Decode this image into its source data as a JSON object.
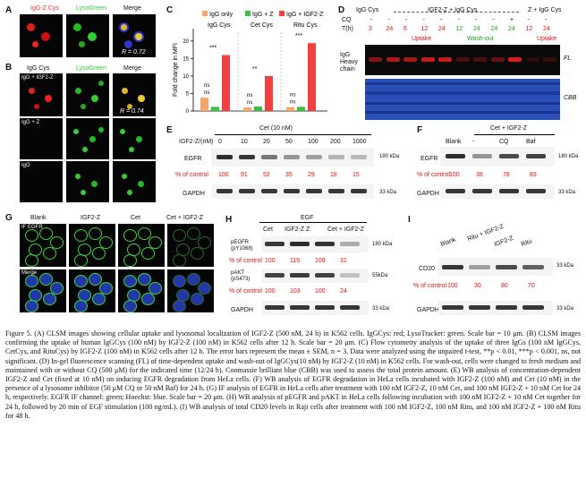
{
  "panel_letters": [
    "A",
    "B",
    "C",
    "D",
    "E",
    "F",
    "G",
    "H",
    "I"
  ],
  "panelA": {
    "labels": [
      "IgG-Z Cys",
      "LysoGreen",
      "Merge"
    ],
    "r_value": "R = 0.72"
  },
  "panelB": {
    "header": [
      "IgG Cys",
      "LysoGreen",
      "Merge"
    ],
    "rows": [
      "IgG + IGF2-Z",
      "IgG + Z",
      "IgG"
    ],
    "r_value": "R = 0.74"
  },
  "panelC": {
    "legend": [
      "IgG only",
      "IgG + Z",
      "IgG + IGF2-Z"
    ],
    "groups": [
      "IgG Cys",
      "Cet Cys",
      "Ritu Cys"
    ],
    "ylabel": "Fold change in MFI",
    "yticks": [
      "0",
      "5",
      "10",
      "15",
      "20"
    ],
    "significance": [
      "ns",
      "ns",
      "***",
      "ns",
      "ns",
      "**",
      "ns",
      "ns",
      "***"
    ],
    "colors": {
      "igg_only": "#f5a66a",
      "igg_z": "#3fbf3f",
      "igg_igf2z": "#f04040"
    }
  },
  "panelD": {
    "groups": [
      "IgG Cys",
      "IGF2-Z + IgG Cys",
      "Z + IgG Cys"
    ],
    "cq_row": [
      "-",
      "-",
      "-",
      "-",
      "-",
      "-",
      "-",
      "-",
      "+",
      "-",
      "-"
    ],
    "t_row": [
      "3",
      "24",
      "6",
      "12",
      "24",
      "12",
      "24",
      "24",
      "24",
      "12",
      "24"
    ],
    "sub_labels": [
      "Uptake",
      "Wash-out",
      "Uptake"
    ],
    "side_labels": [
      "IgG Heavy chain"
    ],
    "right_labels": [
      "FL",
      "CBB"
    ],
    "row_labels": [
      "CQ",
      "T(h)"
    ]
  },
  "panelE": {
    "title": "Cet (10 nM)",
    "conc_label": "IGF2-Z/(nM)",
    "concs": [
      "0",
      "10",
      "20",
      "50",
      "100",
      "200",
      "1000"
    ],
    "rows": [
      "EGFR",
      "GAPDH"
    ],
    "control_label": "% of control",
    "values": [
      "100",
      "91",
      "52",
      "35",
      "29",
      "18",
      "15"
    ],
    "kda": [
      "180 kDa",
      "33 kDa"
    ]
  },
  "panelF": {
    "title": "Cet + IGF2-Z",
    "lanes": [
      "Blank",
      "-",
      "CQ",
      "Baf"
    ],
    "rows": [
      "EGFR",
      "GAPDH"
    ],
    "control_label": "% of control",
    "values": [
      "100",
      "38",
      "78",
      "83"
    ],
    "kda": [
      "180 kDa",
      "33 kDa"
    ]
  },
  "panelG": {
    "header": [
      "Blank",
      "IGF2-Z",
      "Cet",
      "Cet + IGF2-Z"
    ],
    "rows": [
      "IF EGFR",
      "Merge"
    ]
  },
  "panelH": {
    "title": "EGF",
    "lanes": [
      "Cet",
      "IGF2-Z",
      "Z",
      "Cet + IGF2-Z"
    ],
    "rows": [
      "pEGFR (pY1068)",
      "pAKT (pS473)",
      "GAPDH"
    ],
    "control_label": "% of control",
    "values_pegfr": [
      "100",
      "115",
      "109",
      "31"
    ],
    "values_pakt": [
      "100",
      "103",
      "100",
      "24"
    ],
    "kda": [
      "180 kDa",
      "55kDa",
      "33 kDa"
    ]
  },
  "panelI": {
    "lanes": [
      "Blank",
      "Ritu + IGF2-Z",
      "IGF2-Z",
      "Ritu"
    ],
    "rows": [
      "CD20",
      "GAPDH"
    ],
    "control_label": "% of control",
    "values": [
      "100",
      "30",
      "80",
      "70"
    ],
    "kda": [
      "33 kDa",
      "33 kDa"
    ]
  },
  "caption": "Figure 5. (A) CLSM images showing cellular uptake and lysosomal localization of IGF2-Z (500 nM, 24 h) in K562 cells. IgGCys: red; LysoTracker: green. Scale bar = 10 μm. (B) CLSM images confirming the uptake of human IgGCys (100 nM) by IGF2-Z (100 nM) in K562 cells after 12 h. Scale bar = 20 μm. (C) Flow cytometry analysis of the uptake of three IgGs (100 nM IgGCys, CetCys, and RituCys) by IGF2-Z (100 nM) in K562 cells after 12 h. The error bars represent the mean ± SEM, n = 3. Data were analyzed using the unpaired t-test, **p < 0.01, ***p < 0.001, ns, not significant. (D) In-gel fluorescence scanning (FL) of time-dependent uptake and wash-out of IgGCys(10 nM) by IGF2-Z (10 nM) in K562 cells. For wash-out, cells were changed to fresh medium and maintained with or without CQ (500 μM) for the indicated time (12/24 h). Coomassie brilliant blue (CBB) was used to assess the total protein amount. (E) WB analysis of concentration-dependent IGF2-Z and Cet (fixed at 10 nM) on inducing EGFR degradation from HeLa cells. (F) WB analysis of EGFR degradation in HeLa cells incubated with IGF2-Z (100 nM) and Cet (10 nM) in the presence of a lysosome inhibitor (50 μM CQ or 50 nM Baf) for 24 h. (G) IF analysis of EGFR in HeLa cells after treatment with 100 nM IGF2-Z, 10 nM Cet, and 100 nM IGF2-Z + 10 nM Cet for 24 h, respectively. EGFR IF channel: green; Hoechst: blue. Scale bar = 20 μm. (H) WB analysis of pEGFR and pAKT in HeLa cells following incubation with 100 nM IGF2-Z + 10 nM Cet together for 24 h, followed by 20 min of EGF stimulation (100 ng/mL). (I) WB analysis of total CD20 levels in Raji cells after treatment with 100 nM IGF2-Z, 100 nM Ritu, and 100 nM IGF2-Z + 100 nM Ritu for 48 h."
}
